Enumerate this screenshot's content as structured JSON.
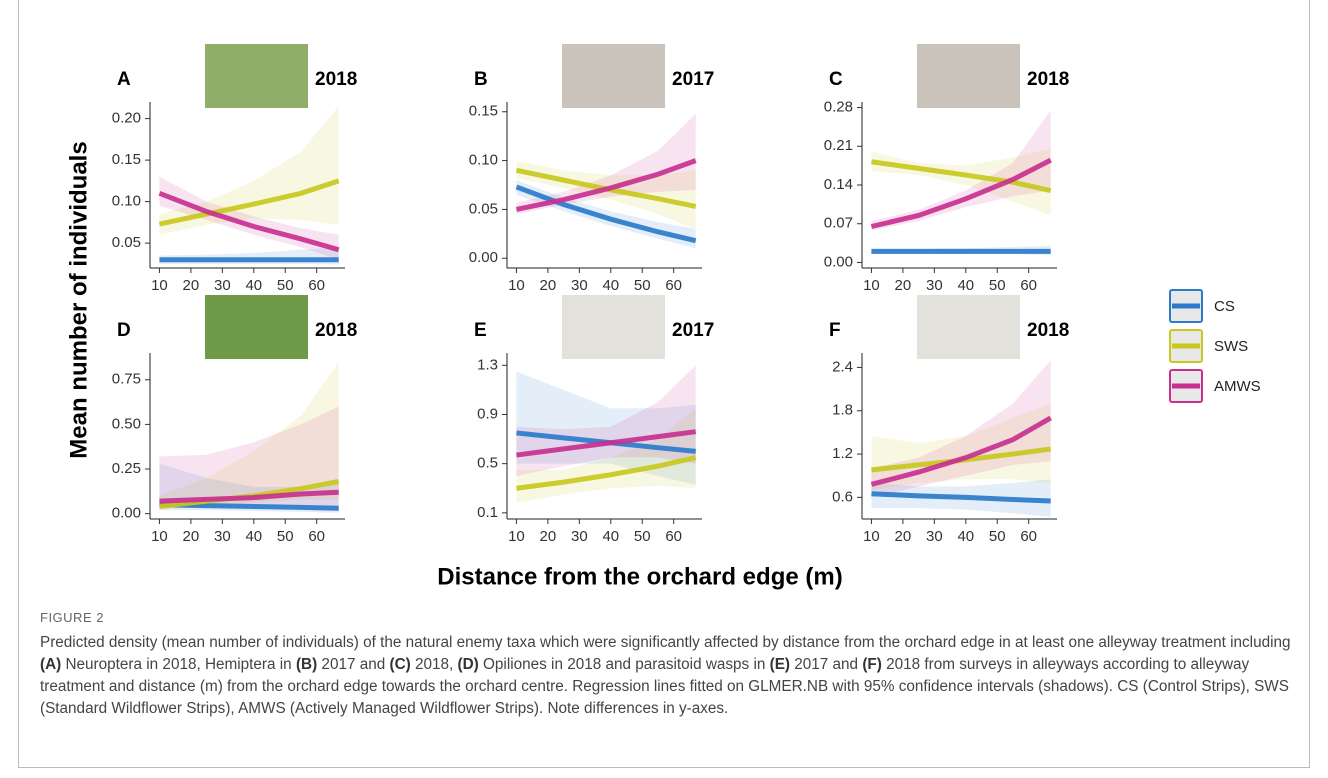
{
  "figure": {
    "ylabel": "Mean number of individuals",
    "xlabel": "Distance from the orchard edge (m)",
    "legend": [
      {
        "name": "CS",
        "color": "#2b7bca"
      },
      {
        "name": "SWS",
        "color": "#c8c81e"
      },
      {
        "name": "AMWS",
        "color": "#c8308f"
      }
    ],
    "label": "FIGURE 2",
    "caption": [
      {
        "text": "Predicted density (mean number of individuals) of the natural enemy taxa which were significantly affected by distance from the orchard edge in at least one alleyway treatment including "
      },
      {
        "text": "(A)",
        "bold": true
      },
      {
        "text": " Neuroptera in 2018, Hemiptera in "
      },
      {
        "text": "(B)",
        "bold": true
      },
      {
        "text": " 2017 and "
      },
      {
        "text": "(C)",
        "bold": true
      },
      {
        "text": " 2018, "
      },
      {
        "text": "(D)",
        "bold": true
      },
      {
        "text": " Opiliones in 2018 and parasitoid wasps in "
      },
      {
        "text": "(E)",
        "bold": true
      },
      {
        "text": " 2017 and "
      },
      {
        "text": "(F)",
        "bold": true
      },
      {
        "text": " 2018 from surveys in alleyways according to alleyway treatment and distance (m) from the orchard edge towards the orchard centre. Regression lines fitted on GLMER.NB with 95% confidence intervals (shadows). CS (Control Strips), SWS (Standard Wildflower Strips), AMWS (Actively Managed Wildflower Strips). Note differences in y-axes."
      }
    ]
  },
  "chart_data": [
    {
      "type": "line",
      "panel": "A",
      "title": "2018",
      "x": [
        10,
        25,
        40,
        55,
        67
      ],
      "xlim": [
        7,
        69
      ],
      "xticks": [
        10,
        20,
        30,
        40,
        50,
        60
      ],
      "ylim": [
        0.02,
        0.22
      ],
      "yticks": [
        0.05,
        {
          "value": 0.1,
          "label": "0.10"
        },
        0.15,
        {
          "value": 0.2,
          "label": "0.20"
        }
      ],
      "series": [
        {
          "values": [
            0.03,
            0.03,
            0.03,
            0.03,
            0.03
          ],
          "lower": [
            0.025,
            0.025,
            0.025,
            0.025,
            0.024
          ],
          "upper": [
            0.035,
            0.036,
            0.038,
            0.042,
            0.045
          ]
        },
        {
          "values": [
            0.073,
            0.085,
            0.097,
            0.11,
            0.125
          ],
          "lower": [
            0.06,
            0.072,
            0.08,
            0.078,
            0.072
          ],
          "upper": [
            0.085,
            0.1,
            0.125,
            0.16,
            0.215
          ]
        },
        {
          "values": [
            0.11,
            0.088,
            0.07,
            0.055,
            0.042
          ],
          "lower": [
            0.095,
            0.078,
            0.06,
            0.045,
            0.03
          ],
          "upper": [
            0.13,
            0.1,
            0.082,
            0.068,
            0.06
          ]
        }
      ]
    },
    {
      "type": "line",
      "panel": "B",
      "title": "2017",
      "x": [
        10,
        25,
        40,
        55,
        67
      ],
      "xlim": [
        7,
        69
      ],
      "xticks": [
        10,
        20,
        30,
        40,
        50,
        60
      ],
      "ylim": [
        -0.01,
        0.16
      ],
      "yticks": [
        {
          "value": 0,
          "label": "0.00"
        },
        0.05,
        {
          "value": 0.1,
          "label": "0.10"
        },
        0.15
      ],
      "series": [
        {
          "values": [
            0.073,
            0.055,
            0.04,
            0.027,
            0.018
          ],
          "lower": [
            0.065,
            0.048,
            0.033,
            0.02,
            0.01
          ],
          "upper": [
            0.08,
            0.062,
            0.048,
            0.037,
            0.03
          ]
        },
        {
          "values": [
            0.09,
            0.08,
            0.07,
            0.061,
            0.053
          ],
          "lower": [
            0.082,
            0.072,
            0.06,
            0.045,
            0.03
          ],
          "upper": [
            0.1,
            0.09,
            0.085,
            0.085,
            0.09
          ]
        },
        {
          "values": [
            0.05,
            0.06,
            0.072,
            0.086,
            0.1
          ],
          "lower": [
            0.045,
            0.055,
            0.063,
            0.068,
            0.07
          ],
          "upper": [
            0.057,
            0.068,
            0.085,
            0.11,
            0.148
          ]
        }
      ]
    },
    {
      "type": "line",
      "panel": "C",
      "title": "2018",
      "x": [
        10,
        25,
        40,
        55,
        67
      ],
      "xlim": [
        7,
        69
      ],
      "xticks": [
        10,
        20,
        30,
        40,
        50,
        60
      ],
      "ylim": [
        -0.01,
        0.29
      ],
      "yticks": [
        {
          "value": 0,
          "label": "0.00"
        },
        0.07,
        0.14,
        0.21,
        0.28
      ],
      "series": [
        {
          "values": [
            0.02,
            0.02,
            0.02,
            0.02,
            0.02
          ],
          "lower": [
            0.015,
            0.015,
            0.015,
            0.015,
            0.014
          ],
          "upper": [
            0.025,
            0.025,
            0.026,
            0.028,
            0.03
          ]
        },
        {
          "values": [
            0.182,
            0.17,
            0.158,
            0.145,
            0.13
          ],
          "lower": [
            0.165,
            0.158,
            0.14,
            0.11,
            0.085
          ],
          "upper": [
            0.2,
            0.18,
            0.175,
            0.19,
            0.205
          ]
        },
        {
          "values": [
            0.065,
            0.085,
            0.115,
            0.15,
            0.185
          ],
          "lower": [
            0.058,
            0.075,
            0.1,
            0.12,
            0.13
          ],
          "upper": [
            0.075,
            0.095,
            0.13,
            0.18,
            0.275
          ]
        }
      ]
    },
    {
      "type": "line",
      "panel": "D",
      "title": "2018",
      "x": [
        10,
        25,
        40,
        55,
        67
      ],
      "xlim": [
        7,
        69
      ],
      "xticks": [
        10,
        20,
        30,
        40,
        50,
        60
      ],
      "ylim": [
        -0.03,
        0.9
      ],
      "yticks": [
        {
          "value": 0,
          "label": "0.00"
        },
        0.25,
        {
          "value": 0.5,
          "label": "0.50"
        },
        0.75
      ],
      "series": [
        {
          "values": [
            0.05,
            0.045,
            0.04,
            0.035,
            0.03
          ],
          "lower": [
            0.02,
            0.02,
            0.015,
            0.01,
            0.005
          ],
          "upper": [
            0.28,
            0.2,
            0.15,
            0.15,
            0.17
          ]
        },
        {
          "values": [
            0.04,
            0.07,
            0.1,
            0.14,
            0.18
          ],
          "lower": [
            0.02,
            0.04,
            0.06,
            0.08,
            0.08
          ],
          "upper": [
            0.1,
            0.2,
            0.35,
            0.55,
            0.85
          ]
        },
        {
          "values": [
            0.07,
            0.08,
            0.09,
            0.11,
            0.12
          ],
          "lower": [
            0.03,
            0.04,
            0.05,
            0.05,
            0.04
          ],
          "upper": [
            0.32,
            0.33,
            0.4,
            0.5,
            0.6
          ]
        }
      ]
    },
    {
      "type": "line",
      "panel": "E",
      "title": "2017",
      "x": [
        10,
        25,
        40,
        55,
        67
      ],
      "xlim": [
        7,
        69
      ],
      "xticks": [
        10,
        20,
        30,
        40,
        50,
        60
      ],
      "ylim": [
        0.05,
        1.4
      ],
      "yticks": [
        0.1,
        0.5,
        0.9,
        1.3
      ],
      "series": [
        {
          "values": [
            0.75,
            0.71,
            0.67,
            0.63,
            0.6
          ],
          "lower": [
            0.5,
            0.5,
            0.5,
            0.4,
            0.33
          ],
          "upper": [
            1.25,
            1.1,
            0.95,
            0.95,
            0.98
          ]
        },
        {
          "values": [
            0.3,
            0.35,
            0.41,
            0.48,
            0.55
          ],
          "lower": [
            0.18,
            0.25,
            0.3,
            0.32,
            0.3
          ],
          "upper": [
            0.45,
            0.45,
            0.55,
            0.7,
            0.95
          ]
        },
        {
          "values": [
            0.57,
            0.62,
            0.67,
            0.72,
            0.76
          ],
          "lower": [
            0.4,
            0.48,
            0.55,
            0.55,
            0.5
          ],
          "upper": [
            0.8,
            0.78,
            0.8,
            1.0,
            1.3
          ]
        }
      ]
    },
    {
      "type": "line",
      "panel": "F",
      "title": "2018",
      "x": [
        10,
        25,
        40,
        55,
        67
      ],
      "xlim": [
        7,
        69
      ],
      "xticks": [
        10,
        20,
        30,
        40,
        50,
        60
      ],
      "ylim": [
        0.3,
        2.6
      ],
      "yticks": [
        0.6,
        1.2,
        1.8,
        2.4
      ],
      "series": [
        {
          "values": [
            0.65,
            0.62,
            0.6,
            0.57,
            0.55
          ],
          "lower": [
            0.45,
            0.45,
            0.43,
            0.38,
            0.33
          ],
          "upper": [
            0.8,
            0.75,
            0.75,
            0.8,
            0.85
          ]
        },
        {
          "values": [
            0.98,
            1.05,
            1.12,
            1.2,
            1.27
          ],
          "lower": [
            0.7,
            0.8,
            0.85,
            0.85,
            0.8
          ],
          "upper": [
            1.45,
            1.35,
            1.45,
            1.7,
            1.9
          ]
        },
        {
          "values": [
            0.78,
            0.95,
            1.15,
            1.4,
            1.7
          ],
          "lower": [
            0.6,
            0.75,
            0.9,
            1.05,
            1.1
          ],
          "upper": [
            1.0,
            1.15,
            1.45,
            1.9,
            2.5
          ]
        }
      ]
    }
  ]
}
